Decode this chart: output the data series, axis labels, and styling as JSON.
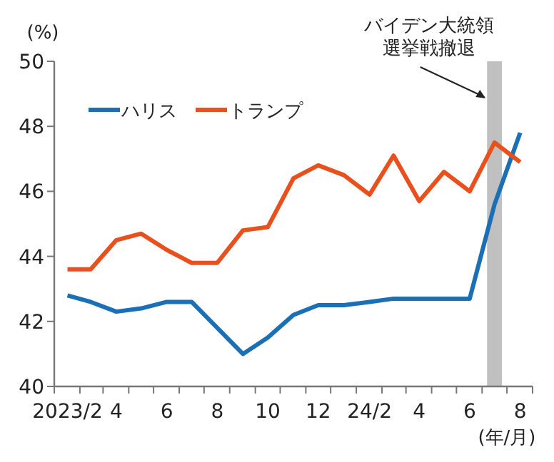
{
  "chart_data": {
    "type": "line",
    "ylabel": "(%)",
    "xlabel": "(年/月)",
    "x": [
      "2023-02",
      "2023-03",
      "2023-04",
      "2023-05",
      "2023-06",
      "2023-07",
      "2023-08",
      "2023-09",
      "2023-10",
      "2023-11",
      "2023-12",
      "2024-01",
      "2024-02",
      "2024-03",
      "2024-04",
      "2024-05",
      "2024-06",
      "2024-07",
      "2024-08"
    ],
    "series": [
      {
        "name": "ハリス",
        "color": "#1a6fb5",
        "values": [
          42.8,
          42.6,
          42.3,
          42.4,
          42.6,
          42.6,
          41.8,
          41.0,
          41.5,
          42.2,
          42.5,
          42.5,
          42.6,
          42.7,
          42.7,
          42.7,
          42.7,
          45.6,
          47.8
        ]
      },
      {
        "name": "トランプ",
        "color": "#e8501e",
        "values": [
          43.6,
          43.6,
          44.5,
          44.7,
          44.2,
          43.8,
          43.8,
          44.8,
          44.9,
          46.4,
          46.8,
          46.5,
          45.9,
          47.1,
          45.7,
          46.6,
          46.0,
          47.5,
          46.9
        ]
      }
    ],
    "xlim": [
      "2023-01-16",
      "2024-08-16"
    ],
    "xticks": [
      {
        "value": "2023-02",
        "label": "2023/2"
      },
      {
        "value": "2023-04",
        "label": "4"
      },
      {
        "value": "2023-06",
        "label": "6"
      },
      {
        "value": "2023-08",
        "label": "8"
      },
      {
        "value": "2023-10",
        "label": "10"
      },
      {
        "value": "2023-12",
        "label": "12"
      },
      {
        "value": "2024-02",
        "label": "24/2"
      },
      {
        "value": "2024-04",
        "label": "4"
      },
      {
        "value": "2024-06",
        "label": "6"
      },
      {
        "value": "2024-08",
        "label": "8"
      },
      {
        "value": "2023-01-16",
        "label": null
      },
      {
        "value": "2023-02-16",
        "label": null
      },
      {
        "value": "2023-03-16",
        "label": null
      },
      {
        "value": "2023-04-16",
        "label": null
      },
      {
        "value": "2023-05-16",
        "label": null
      },
      {
        "value": "2023-06-16",
        "label": null
      },
      {
        "value": "2023-07-16",
        "label": null
      },
      {
        "value": "2023-08-16",
        "label": null
      },
      {
        "value": "2023-09-16",
        "label": null
      },
      {
        "value": "2023-10-16",
        "label": null
      },
      {
        "value": "2023-11-16",
        "label": null
      },
      {
        "value": "2023-12-16",
        "label": null
      },
      {
        "value": "2024-01-16",
        "label": null
      },
      {
        "value": "2024-02-16",
        "label": null
      },
      {
        "value": "2024-03-16",
        "label": null
      },
      {
        "value": "2024-04-16",
        "label": null
      },
      {
        "value": "2024-05-16",
        "label": null
      },
      {
        "value": "2024-06-16",
        "label": null
      },
      {
        "value": "2024-07-16",
        "label": null
      },
      {
        "value": "2024-08-16",
        "label": null
      }
    ],
    "ylim": [
      40,
      50
    ],
    "yticks": [
      40,
      42,
      44,
      46,
      48,
      50
    ],
    "bands": [
      {
        "axis": "x",
        "from": "2024-06-22",
        "to": "2024-07-10",
        "color": "#c0c0c0",
        "label": "バイデン大統領選挙戦撤退"
      }
    ],
    "legend": "top left",
    "grid": false,
    "marker": "none",
    "line_style": "solid"
  }
}
